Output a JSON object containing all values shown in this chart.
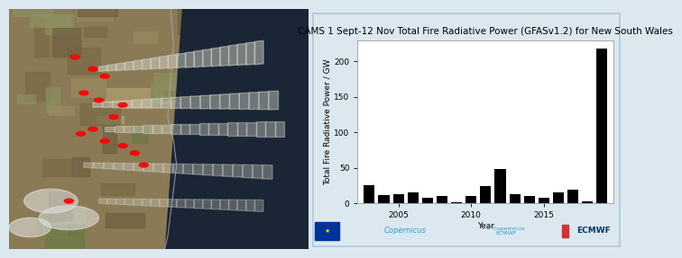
{
  "title": "CAMS 1 Sept-12 Nov Total Fire Radiative Power (GFASv1.2) for New South Wales",
  "xlabel": "Year",
  "ylabel": "Total Fire Radiative Power / GW",
  "years": [
    2003,
    2004,
    2005,
    2006,
    2007,
    2008,
    2009,
    2010,
    2011,
    2012,
    2013,
    2014,
    2015,
    2016,
    2017,
    2018,
    2019
  ],
  "values": [
    26,
    12,
    13,
    15,
    8,
    10,
    2,
    11,
    24,
    48,
    13,
    10,
    8,
    16,
    19,
    3,
    218
  ],
  "bar_color": "#000000",
  "chart_bg": "#ffffff",
  "outer_bg": "#dce8f0",
  "ylim": [
    0,
    230
  ],
  "yticks": [
    0,
    50,
    100,
    150,
    200
  ],
  "xtick_years": [
    2005,
    2010,
    2015
  ],
  "title_fontsize": 7.5,
  "axis_fontsize": 6.5,
  "tick_fontsize": 6.5,
  "sat_colors_land": [
    "#7a6e4e",
    "#8a7e5e",
    "#6e7a50",
    "#5a6e40",
    "#9a9060"
  ],
  "sat_colors_sea": [
    "#1a2a3a",
    "#1e3040",
    "#253545"
  ],
  "sat_colors_smoke": [
    "#c8c8c0",
    "#d8d8d0",
    "#e0dfd8"
  ],
  "border_color": "#aec8d8"
}
